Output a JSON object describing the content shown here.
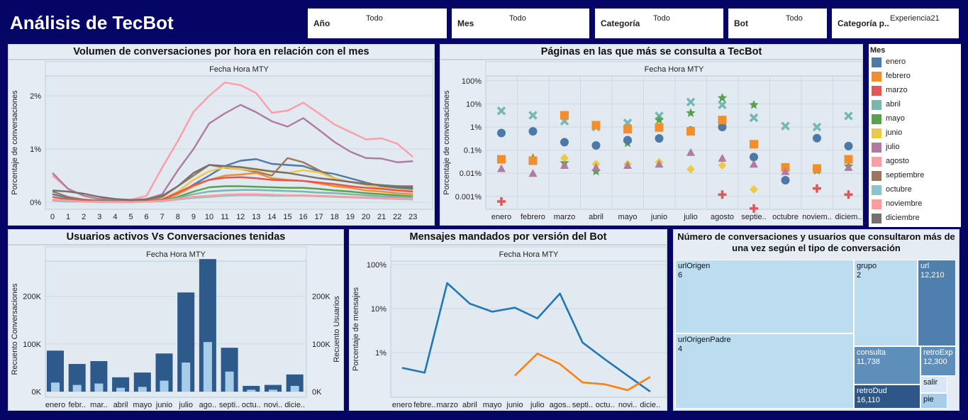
{
  "header": {
    "title": "Análisis de TecBot"
  },
  "filters": [
    {
      "label": "Año",
      "value": "Todo"
    },
    {
      "label": "Mes",
      "value": "Todo"
    },
    {
      "label": "Categoría",
      "value": "Todo"
    },
    {
      "label": "Bot",
      "value": "Todo"
    },
    {
      "label": "Categoría p..",
      "value": "Experiencia21"
    }
  ],
  "legend": {
    "title": "Mes",
    "items": [
      {
        "label": "enero",
        "color": "#4e79a7"
      },
      {
        "label": "febrero",
        "color": "#f28e2b"
      },
      {
        "label": "marzo",
        "color": "#e15759"
      },
      {
        "label": "abril",
        "color": "#76b7b2"
      },
      {
        "label": "mayo",
        "color": "#59a14f"
      },
      {
        "label": "junio",
        "color": "#edc948"
      },
      {
        "label": "julio",
        "color": "#b07aa1"
      },
      {
        "label": "agosto",
        "color": "#ff9da7"
      },
      {
        "label": "septiembre",
        "color": "#9c755f"
      },
      {
        "label": "octubre",
        "color": "#8cc2ca"
      },
      {
        "label": "noviembre",
        "color": "#ff9d9a"
      },
      {
        "label": "diciembre",
        "color": "#79706e"
      }
    ]
  },
  "chart_data": [
    {
      "type": "line",
      "title": "Volumen de conversaciones por hora en relación con el mes",
      "header": "Fecha Hora MTY",
      "ylabel": "Porcentaje de conversaciones",
      "yticks": [
        "2%",
        "1%",
        "0%"
      ],
      "ylim": [
        0,
        2.3
      ],
      "x": [
        "0",
        "1",
        "2",
        "3",
        "4",
        "5",
        "6",
        "7",
        "8",
        "9",
        "10",
        "11",
        "12",
        "13",
        "14",
        "15",
        "16",
        "17",
        "18",
        "19",
        "20",
        "21",
        "22",
        "23"
      ],
      "series": [
        {
          "name": "agosto",
          "color": "#ff9da7",
          "values": [
            0.5,
            0.25,
            0.12,
            0.06,
            0.05,
            0.05,
            0.12,
            0.65,
            1.15,
            1.7,
            2.0,
            2.25,
            2.2,
            2.05,
            1.68,
            1.72,
            1.87,
            1.67,
            1.46,
            1.32,
            1.18,
            1.2,
            1.1,
            0.85
          ]
        },
        {
          "name": "julio",
          "color": "#b07aa1",
          "values": [
            0.55,
            0.25,
            0.12,
            0.06,
            0.04,
            0.04,
            0.06,
            0.15,
            0.6,
            1.0,
            1.48,
            1.67,
            1.83,
            1.69,
            1.52,
            1.42,
            1.58,
            1.36,
            1.13,
            0.95,
            0.83,
            0.82,
            0.75,
            0.77
          ]
        },
        {
          "name": "enero",
          "color": "#4e79a7",
          "values": [
            0.15,
            0.08,
            0.04,
            0.02,
            0.01,
            0.01,
            0.02,
            0.05,
            0.15,
            0.33,
            0.5,
            0.68,
            0.78,
            0.81,
            0.72,
            0.7,
            0.68,
            0.58,
            0.53,
            0.45,
            0.37,
            0.3,
            0.27,
            0.25
          ]
        },
        {
          "name": "septiembre",
          "color": "#9c755f",
          "values": [
            0.2,
            0.1,
            0.05,
            0.03,
            0.02,
            0.02,
            0.03,
            0.1,
            0.3,
            0.5,
            0.7,
            0.65,
            0.62,
            0.57,
            0.5,
            0.83,
            0.75,
            0.6,
            0.45,
            0.38,
            0.35,
            0.32,
            0.3,
            0.3
          ]
        },
        {
          "name": "febrero",
          "color": "#f28e2b",
          "values": [
            0.1,
            0.05,
            0.02,
            0.01,
            0.01,
            0.01,
            0.02,
            0.05,
            0.15,
            0.3,
            0.42,
            0.5,
            0.52,
            0.55,
            0.45,
            0.42,
            0.4,
            0.35,
            0.3,
            0.27,
            0.22,
            0.2,
            0.17,
            0.15
          ]
        },
        {
          "name": "junio",
          "color": "#edc948",
          "values": [
            0.1,
            0.05,
            0.02,
            0.01,
            0.01,
            0.01,
            0.02,
            0.06,
            0.2,
            0.42,
            0.58,
            0.66,
            0.62,
            0.6,
            0.57,
            0.55,
            0.6,
            0.56,
            0.45,
            0.38,
            0.32,
            0.27,
            0.24,
            0.22
          ]
        },
        {
          "name": "marzo",
          "color": "#e15759",
          "values": [
            0.1,
            0.05,
            0.02,
            0.01,
            0.01,
            0.01,
            0.02,
            0.05,
            0.18,
            0.32,
            0.42,
            0.46,
            0.47,
            0.45,
            0.42,
            0.41,
            0.4,
            0.37,
            0.34,
            0.3,
            0.27,
            0.25,
            0.22,
            0.2
          ]
        },
        {
          "name": "mayo",
          "color": "#59a14f",
          "values": [
            0.05,
            0.03,
            0.01,
            0.01,
            0.01,
            0.01,
            0.01,
            0.03,
            0.1,
            0.2,
            0.28,
            0.3,
            0.3,
            0.29,
            0.28,
            0.27,
            0.27,
            0.25,
            0.22,
            0.2,
            0.17,
            0.15,
            0.13,
            0.11
          ]
        },
        {
          "name": "abril",
          "color": "#76b7b2",
          "values": [
            0.04,
            0.02,
            0.01,
            0.01,
            0.01,
            0.01,
            0.01,
            0.02,
            0.08,
            0.15,
            0.2,
            0.22,
            0.23,
            0.23,
            0.22,
            0.21,
            0.2,
            0.18,
            0.17,
            0.15,
            0.13,
            0.11,
            0.1,
            0.09
          ]
        },
        {
          "name": "diciembre",
          "color": "#79706e",
          "values": [
            0.22,
            0.2,
            0.16,
            0.1,
            0.06,
            0.04,
            0.05,
            0.12,
            0.3,
            0.55,
            0.7,
            0.68,
            0.66,
            0.62,
            0.58,
            0.55,
            0.5,
            0.45,
            0.42,
            0.38,
            0.34,
            0.32,
            0.3,
            0.28
          ]
        },
        {
          "name": "octubre",
          "color": "#8cc2ca",
          "values": [
            0.03,
            0.01,
            0.01,
            0.0,
            0.0,
            0.0,
            0.01,
            0.02,
            0.05,
            0.08,
            0.1,
            0.12,
            0.13,
            0.13,
            0.12,
            0.12,
            0.12,
            0.11,
            0.1,
            0.09,
            0.08,
            0.07,
            0.06,
            0.05
          ]
        },
        {
          "name": "noviembre",
          "color": "#ff9d9a",
          "values": [
            0.05,
            0.03,
            0.01,
            0.01,
            0.0,
            0.0,
            0.01,
            0.03,
            0.06,
            0.1,
            0.12,
            0.14,
            0.15,
            0.15,
            0.14,
            0.13,
            0.13,
            0.12,
            0.11,
            0.1,
            0.09,
            0.08,
            0.07,
            0.06
          ]
        }
      ]
    },
    {
      "type": "scatter",
      "title": "Páginas en las que más se consulta a TecBot",
      "header": "Fecha Hora MTY",
      "ylabel": "Porcentaje de conversaciones",
      "scale": "log",
      "yticks": [
        "100%",
        "10%",
        "1%",
        "0.1%",
        "0.01%",
        "0.001%"
      ],
      "categories": [
        "enero",
        "febrero",
        "marzo",
        "abril",
        "mayo",
        "junio",
        "julio",
        "agosto",
        "septie..",
        "octubre",
        "noviem..",
        "diciem.."
      ],
      "series": [
        {
          "shape": "x",
          "color": "#76b7b2",
          "values": [
            5,
            3.2,
            1.8,
            1.0,
            1.5,
            3.0,
            12,
            9,
            2.5,
            1.1,
            1.0,
            3.0
          ]
        },
        {
          "shape": "star",
          "color": "#59a14f",
          "values": [
            null,
            0.045,
            0.028,
            0.012,
            0.2,
            2.0,
            4.0,
            18,
            9,
            null,
            0.013,
            0.02
          ]
        },
        {
          "shape": "circle",
          "color": "#4e79a7",
          "values": [
            0.55,
            0.65,
            0.22,
            0.16,
            0.27,
            0.32,
            0.7,
            1.0,
            0.05,
            0.005,
            0.33,
            0.15
          ]
        },
        {
          "shape": "square",
          "color": "#f28e2b",
          "values": [
            0.04,
            0.035,
            3.2,
            1.2,
            0.8,
            0.95,
            0.65,
            2.0,
            0.18,
            0.018,
            0.016,
            0.04
          ]
        },
        {
          "shape": "diamond",
          "color": "#edc948",
          "values": [
            null,
            null,
            0.045,
            0.025,
            0.025,
            0.03,
            0.015,
            0.022,
            0.002,
            null,
            null,
            null
          ]
        },
        {
          "shape": "triangle",
          "color": "#b07aa1",
          "values": [
            0.016,
            0.01,
            0.022,
            0.018,
            0.022,
            0.025,
            0.08,
            0.045,
            0.025,
            0.012,
            null,
            0.018
          ]
        },
        {
          "shape": "plus",
          "color": "#e15759",
          "values": [
            0.0006,
            null,
            null,
            null,
            null,
            null,
            null,
            0.0012,
            0.0003,
            null,
            0.0022,
            0.0012
          ]
        }
      ]
    },
    {
      "type": "bar",
      "title": "Usuarios activos Vs Conversaciones tenidas",
      "header": "Fecha Hora MTY",
      "ylabel": "Recuento Conversaciones",
      "y2label": "Recuento Usuarios",
      "yticks": [
        "200K",
        "100K",
        "0K"
      ],
      "ylim": [
        0,
        290000
      ],
      "categories": [
        "enero",
        "febr..",
        "mar..",
        "abril",
        "mayo",
        "junio",
        "julio",
        "ago..",
        "septi..",
        "octu..",
        "novi..",
        "dicie.."
      ],
      "series": [
        {
          "name": "Recuento Conversaciones",
          "color": "#2d5a8a",
          "values": [
            86000,
            58000,
            64000,
            30000,
            40000,
            80000,
            208000,
            278000,
            92000,
            12000,
            14000,
            36000
          ]
        },
        {
          "name": "Recuento Usuarios",
          "color": "#a8cdea",
          "values": [
            19000,
            14000,
            17000,
            8000,
            10000,
            23000,
            61000,
            104000,
            42000,
            4000,
            4000,
            12000
          ]
        }
      ]
    },
    {
      "type": "line",
      "title": "Mensajes mandados por versión del Bot",
      "header": "Fecha Hora MTY",
      "ylabel": "Porcentaje de mensajes",
      "scale": "log",
      "yticks": [
        "100%",
        "10%",
        "1%"
      ],
      "categories": [
        "enero",
        "febre..",
        "marzo",
        "abril",
        "mayo",
        "junio",
        "julio",
        "agos..",
        "septi..",
        "octu..",
        "novi..",
        "dicie.."
      ],
      "series": [
        {
          "color": "#1f77b4",
          "values": [
            0.45,
            0.35,
            38,
            13,
            8.5,
            10.5,
            6,
            22,
            1.7,
            0.7,
            0.3,
            0.13
          ]
        },
        {
          "color": "#ff7f0e",
          "values": [
            null,
            null,
            null,
            null,
            null,
            0.3,
            0.95,
            0.55,
            0.21,
            0.19,
            0.14,
            0.28
          ]
        }
      ]
    }
  ],
  "treemap": {
    "title": "Número de conversaciones y usuarios que consultaron más de una vez según el tipo de conversación",
    "cells": [
      {
        "label": "urlOrigen",
        "value": "6"
      },
      {
        "label": "urlOrigenPadre",
        "value": "4"
      },
      {
        "label": "grupo",
        "value": "2"
      },
      {
        "label": "url",
        "value": "12,210"
      },
      {
        "label": "consulta",
        "value": "11,738"
      },
      {
        "label": "retroExp",
        "value": "12,300"
      },
      {
        "label": "retroDud",
        "value": "16,110"
      },
      {
        "label": "salir",
        "value": ""
      },
      {
        "label": "pie",
        "value": ""
      }
    ]
  }
}
